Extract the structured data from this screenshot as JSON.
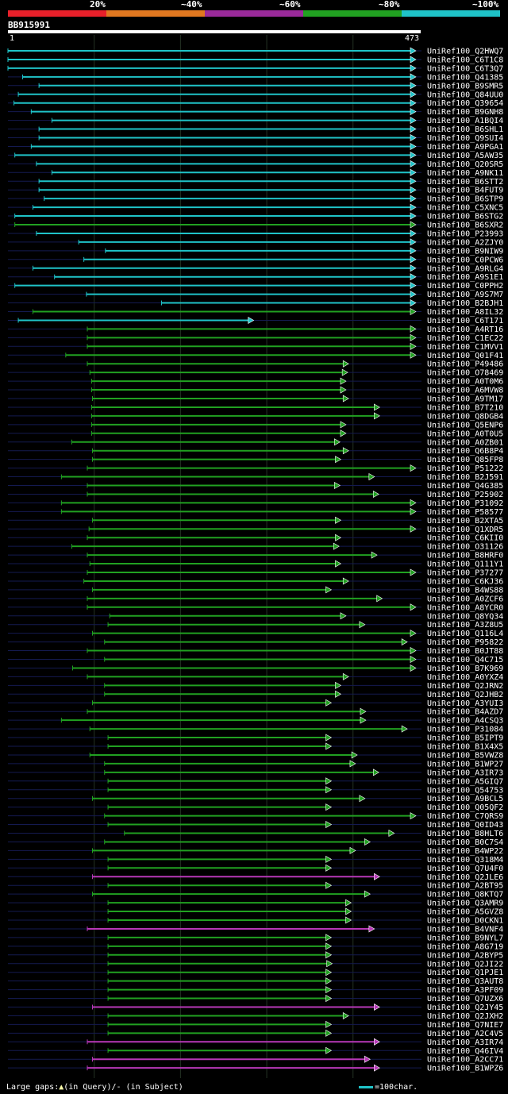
{
  "legend": {
    "colors": [
      "#e8202a",
      "#e07820",
      "#9a2a9a",
      "#21a121",
      "#1fc3c8"
    ],
    "labels": [
      "20%",
      "~40%",
      "~60%",
      "~80%",
      "~100%"
    ]
  },
  "query": {
    "id": "BB915991",
    "start": "1",
    "end": "473"
  },
  "footer": {
    "gaps_label": "Large gaps:",
    "in_query": "(in Query)/",
    "dash": "-",
    "in_subject": " (in Subject)",
    "scale_label": "=100char."
  },
  "chart_data": {
    "type": "alignment",
    "query_length": 473,
    "hits": [
      {
        "name": "UniRef100_Q2HWQ7",
        "start": 1,
        "end": 473,
        "identity": "~100%"
      },
      {
        "name": "UniRef100_C6T1C8",
        "start": 1,
        "end": 473,
        "identity": "~100%"
      },
      {
        "name": "UniRef100_C6T3Q7",
        "start": 1,
        "end": 473,
        "identity": "~100%"
      },
      {
        "name": "UniRef100_Q41385",
        "start": 18,
        "end": 473,
        "identity": "~100%"
      },
      {
        "name": "UniRef100_B9SMR5",
        "start": 37,
        "end": 473,
        "identity": "~100%"
      },
      {
        "name": "UniRef100_Q84UU0",
        "start": 13,
        "end": 473,
        "identity": "~100%"
      },
      {
        "name": "UniRef100_Q39654",
        "start": 8,
        "end": 473,
        "identity": "~100%"
      },
      {
        "name": "UniRef100_B9GNH8",
        "start": 28,
        "end": 473,
        "identity": "~100%"
      },
      {
        "name": "UniRef100_A1BQI4",
        "start": 52,
        "end": 473,
        "identity": "~100%"
      },
      {
        "name": "UniRef100_B6SHL1",
        "start": 37,
        "end": 473,
        "identity": "~100%"
      },
      {
        "name": "UniRef100_Q9SUI4",
        "start": 37,
        "end": 473,
        "identity": "~100%"
      },
      {
        "name": "UniRef100_A9PGA1",
        "start": 28,
        "end": 473,
        "identity": "~100%"
      },
      {
        "name": "UniRef100_A5AW35",
        "start": 9,
        "end": 473,
        "identity": "~100%"
      },
      {
        "name": "UniRef100_Q20SR5",
        "start": 34,
        "end": 473,
        "identity": "~100%"
      },
      {
        "name": "UniRef100_A9NK11",
        "start": 52,
        "end": 473,
        "identity": "~100%"
      },
      {
        "name": "UniRef100_B6STT2",
        "start": 37,
        "end": 473,
        "identity": "~100%"
      },
      {
        "name": "UniRef100_B4FUT9",
        "start": 37,
        "end": 473,
        "identity": "~100%"
      },
      {
        "name": "UniRef100_B6STP9",
        "start": 43,
        "end": 473,
        "identity": "~100%"
      },
      {
        "name": "UniRef100_C5XNC5",
        "start": 30,
        "end": 473,
        "identity": "~100%"
      },
      {
        "name": "UniRef100_B6STG2",
        "start": 9,
        "end": 473,
        "identity": "~100%"
      },
      {
        "name": "UniRef100_B6SXR2",
        "start": 9,
        "end": 473,
        "identity": "~80%"
      },
      {
        "name": "UniRef100_P23993",
        "start": 34,
        "end": 473,
        "identity": "~100%"
      },
      {
        "name": "UniRef100_A2ZJY0",
        "start": 83,
        "end": 473,
        "identity": "~100%"
      },
      {
        "name": "UniRef100_B9NIW9",
        "start": 114,
        "end": 473,
        "identity": "~100%"
      },
      {
        "name": "UniRef100_C0PCW6",
        "start": 89,
        "end": 473,
        "identity": "~100%"
      },
      {
        "name": "UniRef100_A9RLG4",
        "start": 30,
        "end": 473,
        "identity": "~100%"
      },
      {
        "name": "UniRef100_A9S1E1",
        "start": 55,
        "end": 473,
        "identity": "~100%"
      },
      {
        "name": "UniRef100_C0PPH2",
        "start": 9,
        "end": 473,
        "identity": "~100%"
      },
      {
        "name": "UniRef100_A9S7M7",
        "start": 92,
        "end": 473,
        "identity": "~100%"
      },
      {
        "name": "UniRef100_B2BJH1",
        "start": 179,
        "end": 473,
        "identity": "~100%"
      },
      {
        "name": "UniRef100_A8IL32",
        "start": 30,
        "end": 473,
        "identity": "~80%"
      },
      {
        "name": "UniRef100_C6T171",
        "start": 13,
        "end": 285,
        "identity": "~100%"
      },
      {
        "name": "UniRef100_A4RT16",
        "start": 93,
        "end": 473,
        "identity": "~80%"
      },
      {
        "name": "UniRef100_C1EC22",
        "start": 93,
        "end": 473,
        "identity": "~80%"
      },
      {
        "name": "UniRef100_C1MVV1",
        "start": 93,
        "end": 473,
        "identity": "~80%"
      },
      {
        "name": "UniRef100_Q01F41",
        "start": 68,
        "end": 473,
        "identity": "~80%"
      },
      {
        "name": "UniRef100_P49486",
        "start": 93,
        "end": 395,
        "identity": "~80%"
      },
      {
        "name": "UniRef100_O78469",
        "start": 96,
        "end": 394,
        "identity": "~80%"
      },
      {
        "name": "UniRef100_A0T0M6",
        "start": 98,
        "end": 392,
        "identity": "~80%"
      },
      {
        "name": "UniRef100_A6MVW8",
        "start": 98,
        "end": 392,
        "identity": "~80%"
      },
      {
        "name": "UniRef100_A9TM17",
        "start": 99,
        "end": 395,
        "identity": "~80%"
      },
      {
        "name": "UniRef100_B7T210",
        "start": 98,
        "end": 431,
        "identity": "~80%"
      },
      {
        "name": "UniRef100_Q8DGB4",
        "start": 98,
        "end": 431,
        "identity": "~80%"
      },
      {
        "name": "UniRef100_Q5ENP6",
        "start": 98,
        "end": 392,
        "identity": "~80%"
      },
      {
        "name": "UniRef100_A0T0U5",
        "start": 98,
        "end": 392,
        "identity": "~80%"
      },
      {
        "name": "UniRef100_A0ZB01",
        "start": 75,
        "end": 385,
        "identity": "~80%"
      },
      {
        "name": "UniRef100_Q6B8P4",
        "start": 99,
        "end": 395,
        "identity": "~80%"
      },
      {
        "name": "UniRef100_Q85FP8",
        "start": 99,
        "end": 386,
        "identity": "~80%"
      },
      {
        "name": "UniRef100_P51222",
        "start": 93,
        "end": 473,
        "identity": "~80%"
      },
      {
        "name": "UniRef100_B2J591",
        "start": 63,
        "end": 425,
        "identity": "~80%"
      },
      {
        "name": "UniRef100_Q4G385",
        "start": 93,
        "end": 385,
        "identity": "~80%"
      },
      {
        "name": "UniRef100_P25902",
        "start": 93,
        "end": 430,
        "identity": "~80%"
      },
      {
        "name": "UniRef100_P31092",
        "start": 63,
        "end": 473,
        "identity": "~80%"
      },
      {
        "name": "UniRef100_P58577",
        "start": 63,
        "end": 473,
        "identity": "~80%"
      },
      {
        "name": "UniRef100_B2XTA5",
        "start": 99,
        "end": 386,
        "identity": "~80%"
      },
      {
        "name": "UniRef100_Q1XDR5",
        "start": 95,
        "end": 473,
        "identity": "~80%"
      },
      {
        "name": "UniRef100_C6KII0",
        "start": 93,
        "end": 386,
        "identity": "~80%"
      },
      {
        "name": "UniRef100_O31126",
        "start": 75,
        "end": 384,
        "identity": "~80%"
      },
      {
        "name": "UniRef100_B8HRF0",
        "start": 93,
        "end": 428,
        "identity": "~80%"
      },
      {
        "name": "UniRef100_Q111Y1",
        "start": 96,
        "end": 386,
        "identity": "~80%"
      },
      {
        "name": "UniRef100_P37277",
        "start": 93,
        "end": 473,
        "identity": "~80%"
      },
      {
        "name": "UniRef100_C6KJ36",
        "start": 89,
        "end": 395,
        "identity": "~80%"
      },
      {
        "name": "UniRef100_B4WS88",
        "start": 99,
        "end": 375,
        "identity": "~80%"
      },
      {
        "name": "UniRef100_A0ZCF6",
        "start": 93,
        "end": 434,
        "identity": "~80%"
      },
      {
        "name": "UniRef100_A8YCR0",
        "start": 93,
        "end": 473,
        "identity": "~80%"
      },
      {
        "name": "UniRef100_Q8YQ34",
        "start": 119,
        "end": 392,
        "identity": "~80%"
      },
      {
        "name": "UniRef100_A3Z8U5",
        "start": 117,
        "end": 414,
        "identity": "~80%"
      },
      {
        "name": "UniRef100_Q116L4",
        "start": 99,
        "end": 473,
        "identity": "~80%"
      },
      {
        "name": "UniRef100_P95822",
        "start": 113,
        "end": 463,
        "identity": "~80%"
      },
      {
        "name": "UniRef100_B0JT88",
        "start": 93,
        "end": 473,
        "identity": "~80%"
      },
      {
        "name": "UniRef100_Q4C715",
        "start": 113,
        "end": 473,
        "identity": "~80%"
      },
      {
        "name": "UniRef100_B7K969",
        "start": 76,
        "end": 473,
        "identity": "~80%"
      },
      {
        "name": "UniRef100_A0YXZ4",
        "start": 93,
        "end": 395,
        "identity": "~80%"
      },
      {
        "name": "UniRef100_Q2JRN2",
        "start": 113,
        "end": 386,
        "identity": "~80%"
      },
      {
        "name": "UniRef100_Q2JHB2",
        "start": 113,
        "end": 386,
        "identity": "~80%"
      },
      {
        "name": "UniRef100_A3YUI3",
        "start": 99,
        "end": 375,
        "identity": "~80%"
      },
      {
        "name": "UniRef100_B4AZD7",
        "start": 93,
        "end": 415,
        "identity": "~80%"
      },
      {
        "name": "UniRef100_A4CSQ3",
        "start": 63,
        "end": 415,
        "identity": "~80%"
      },
      {
        "name": "UniRef100_P31084",
        "start": 96,
        "end": 463,
        "identity": "~80%"
      },
      {
        "name": "UniRef100_B5IPT9",
        "start": 117,
        "end": 375,
        "identity": "~80%"
      },
      {
        "name": "UniRef100_B1X4X5",
        "start": 117,
        "end": 375,
        "identity": "~80%"
      },
      {
        "name": "UniRef100_B5VWZ8",
        "start": 96,
        "end": 405,
        "identity": "~80%"
      },
      {
        "name": "UniRef100_B1WP27",
        "start": 113,
        "end": 403,
        "identity": "~80%"
      },
      {
        "name": "UniRef100_A3IR73",
        "start": 113,
        "end": 430,
        "identity": "~80%"
      },
      {
        "name": "UniRef100_A5GIQ7",
        "start": 117,
        "end": 375,
        "identity": "~80%"
      },
      {
        "name": "UniRef100_Q54753",
        "start": 117,
        "end": 375,
        "identity": "~80%"
      },
      {
        "name": "UniRef100_A9BCL5",
        "start": 99,
        "end": 414,
        "identity": "~80%"
      },
      {
        "name": "UniRef100_Q05QF2",
        "start": 117,
        "end": 375,
        "identity": "~80%"
      },
      {
        "name": "UniRef100_C7QRS9",
        "start": 113,
        "end": 473,
        "identity": "~80%"
      },
      {
        "name": "UniRef100_Q0ID43",
        "start": 117,
        "end": 375,
        "identity": "~80%"
      },
      {
        "name": "UniRef100_B8HLT6",
        "start": 136,
        "end": 448,
        "identity": "~80%"
      },
      {
        "name": "UniRef100_B0C7S4",
        "start": 113,
        "end": 420,
        "identity": "~80%"
      },
      {
        "name": "UniRef100_B4WP22",
        "start": 99,
        "end": 403,
        "identity": "~80%"
      },
      {
        "name": "UniRef100_Q318M4",
        "start": 117,
        "end": 375,
        "identity": "~80%"
      },
      {
        "name": "UniRef100_Q7U4F0",
        "start": 117,
        "end": 375,
        "identity": "~80%"
      },
      {
        "name": "UniRef100_Q2JLE6",
        "start": 99,
        "end": 431,
        "identity": "~60%"
      },
      {
        "name": "UniRef100_A2BT95",
        "start": 117,
        "end": 375,
        "identity": "~80%"
      },
      {
        "name": "UniRef100_Q8KTQ7",
        "start": 99,
        "end": 420,
        "identity": "~80%"
      },
      {
        "name": "UniRef100_Q3AMR9",
        "start": 117,
        "end": 398,
        "identity": "~80%"
      },
      {
        "name": "UniRef100_A5GVZ8",
        "start": 117,
        "end": 398,
        "identity": "~80%"
      },
      {
        "name": "UniRef100_D0CKN1",
        "start": 117,
        "end": 398,
        "identity": "~80%"
      },
      {
        "name": "UniRef100_B4VNF4",
        "start": 93,
        "end": 425,
        "identity": "~60%"
      },
      {
        "name": "UniRef100_B9NYL7",
        "start": 117,
        "end": 375,
        "identity": "~80%"
      },
      {
        "name": "UniRef100_A8G719",
        "start": 117,
        "end": 375,
        "identity": "~80%"
      },
      {
        "name": "UniRef100_A2BYP5",
        "start": 117,
        "end": 375,
        "identity": "~80%"
      },
      {
        "name": "UniRef100_Q2JI22",
        "start": 117,
        "end": 376,
        "identity": "~80%"
      },
      {
        "name": "UniRef100_Q1PJE1",
        "start": 117,
        "end": 375,
        "identity": "~80%"
      },
      {
        "name": "UniRef100_Q3AUT8",
        "start": 117,
        "end": 375,
        "identity": "~80%"
      },
      {
        "name": "UniRef100_A3PF09",
        "start": 117,
        "end": 375,
        "identity": "~80%"
      },
      {
        "name": "UniRef100_Q7UZX6",
        "start": 117,
        "end": 375,
        "identity": "~80%"
      },
      {
        "name": "UniRef100_Q2JY45",
        "start": 99,
        "end": 431,
        "identity": "~60%"
      },
      {
        "name": "UniRef100_Q2JXH2",
        "start": 117,
        "end": 395,
        "identity": "~80%"
      },
      {
        "name": "UniRef100_Q7NIE7",
        "start": 117,
        "end": 375,
        "identity": "~80%"
      },
      {
        "name": "UniRef100_A2C4V5",
        "start": 117,
        "end": 375,
        "identity": "~80%"
      },
      {
        "name": "UniRef100_A3IR74",
        "start": 93,
        "end": 431,
        "identity": "~60%"
      },
      {
        "name": "UniRef100_Q46IV4",
        "start": 117,
        "end": 375,
        "identity": "~80%"
      },
      {
        "name": "UniRef100_A2CC71",
        "start": 99,
        "end": 420,
        "identity": "~60%"
      },
      {
        "name": "UniRef100_B1WPZ6",
        "start": 93,
        "end": 431,
        "identity": "~60%"
      }
    ]
  }
}
